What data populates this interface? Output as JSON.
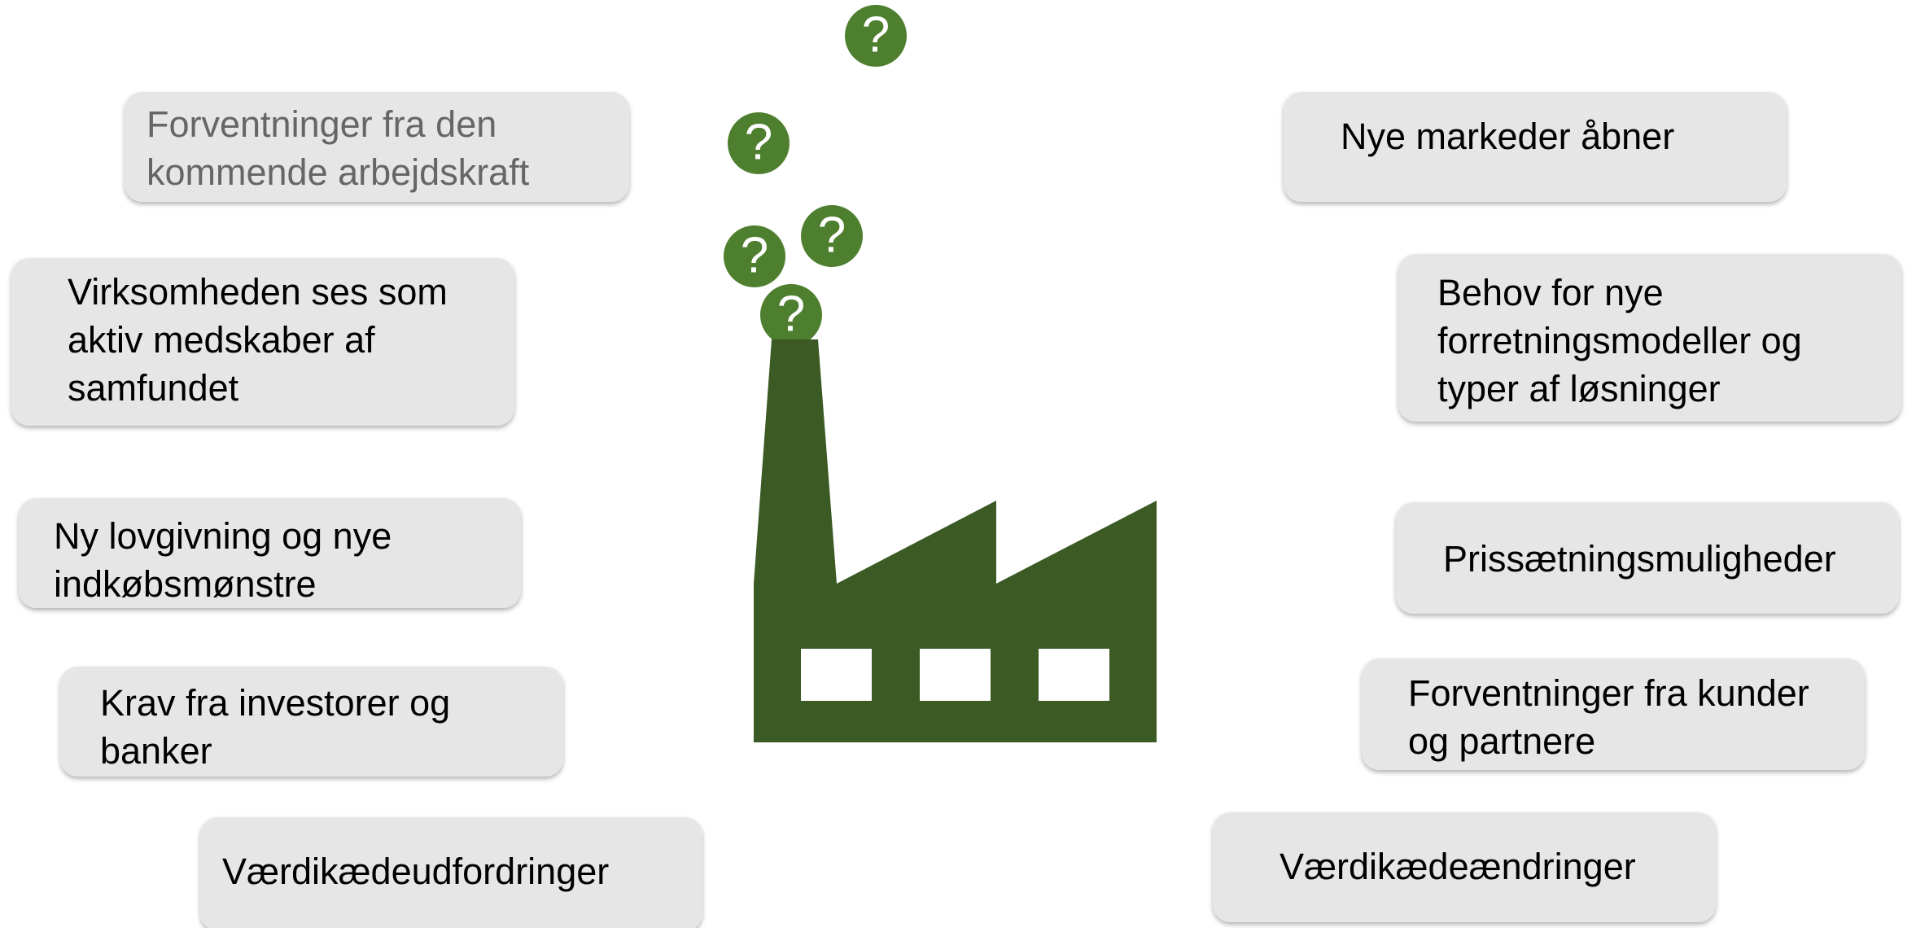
{
  "diagram": {
    "question_mark": "?",
    "left_boxes": [
      {
        "lines": [
          "Forventninger fra den",
          "kommende arbejdskraft"
        ]
      },
      {
        "lines": [
          "Virksomheden ses som",
          "aktiv medskaber af",
          "samfundet"
        ]
      },
      {
        "lines": [
          "Ny lovgivning og nye",
          "indkøbsmønstre"
        ]
      },
      {
        "lines": [
          "Krav fra investorer og",
          "banker"
        ]
      },
      {
        "lines": [
          "Værdikædeudfordringer"
        ]
      }
    ],
    "right_boxes": [
      {
        "lines": [
          "Nye markeder åbner"
        ]
      },
      {
        "lines": [
          "Behov for nye",
          "forretningsmodeller og",
          "typer af løsninger"
        ]
      },
      {
        "lines": [
          "Prissætningsmuligheder"
        ]
      },
      {
        "lines": [
          "Forventninger fra kunder",
          "og partnere"
        ]
      },
      {
        "lines": [
          "Værdikædeændringer"
        ]
      }
    ]
  }
}
